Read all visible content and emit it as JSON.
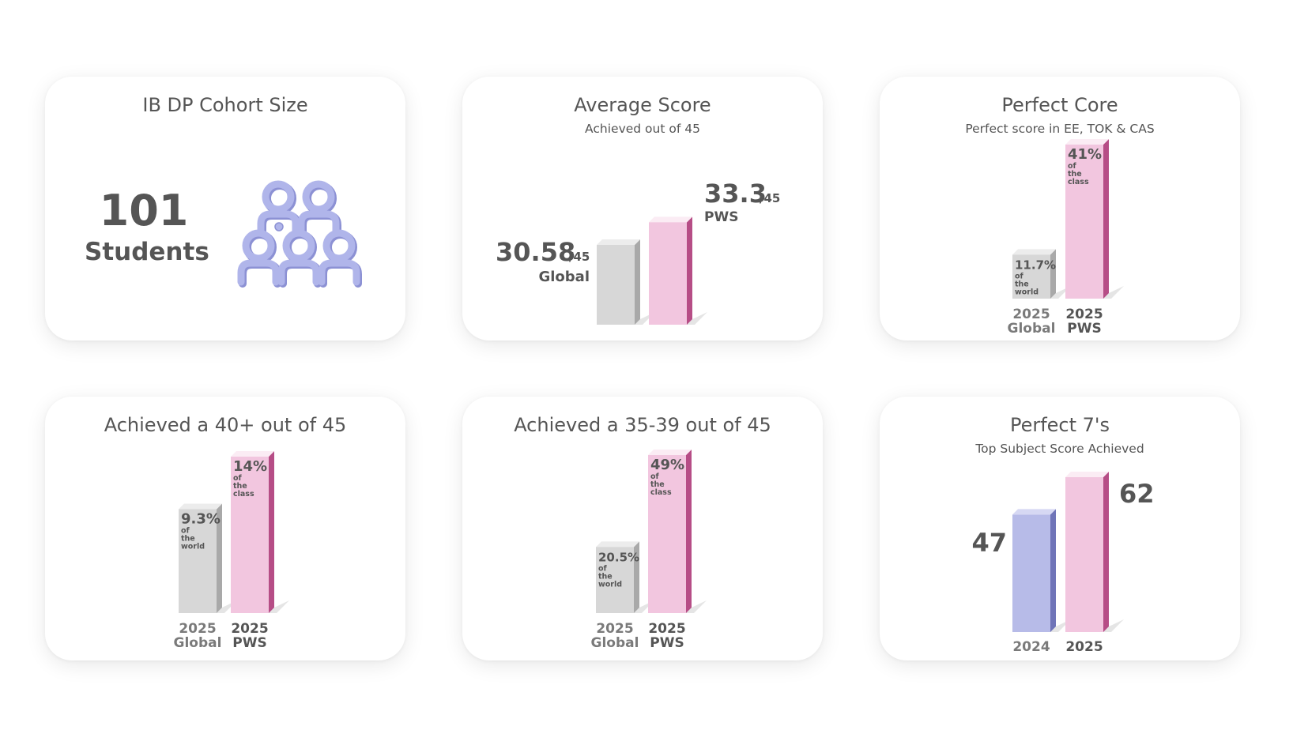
{
  "colors": {
    "global": "#d7d7d7",
    "global_side": "#a9a9a9",
    "pws": "#f2c6df",
    "pws_side": "#b64d86",
    "pws_top": "#fbecf4",
    "prior_year": "#b7bbe8",
    "prior_year_side": "#6f74b8",
    "icon": "#b0b5ea",
    "icon_shade": "#8c91d4",
    "text": "#555555",
    "muted": "#7a7a7a"
  },
  "cohort": {
    "title": "IB DP Cohort Size",
    "number": "101",
    "label": "Students",
    "icon": "people-group-icon"
  },
  "chart_data": [
    {
      "id": "avg",
      "type": "bar",
      "title": "Average Score",
      "subtitle": "Achieved out of 45",
      "categories": [
        "Global",
        "PWS"
      ],
      "values": [
        30.58,
        33.3
      ],
      "ylim": [
        0,
        45
      ],
      "data_labels": [
        {
          "value": "30.58",
          "suffix": "/45",
          "name": "Global"
        },
        {
          "value": "33.3",
          "suffix": "/45",
          "name": "PWS"
        }
      ]
    },
    {
      "id": "core",
      "type": "bar",
      "title": "Perfect Core",
      "subtitle": "Perfect score in EE, TOK  & CAS",
      "categories": [
        "2025 Global",
        "2025 PWS"
      ],
      "values": [
        11.7,
        41
      ],
      "ylim": [
        0,
        41
      ],
      "axis_labels": [
        [
          "2025",
          "Global"
        ],
        [
          "2025",
          "PWS"
        ]
      ],
      "data_labels": [
        {
          "value": "11.7%",
          "lines": [
            "of",
            "the",
            "world"
          ]
        },
        {
          "value": "41%",
          "lines": [
            "of",
            "the",
            "class"
          ]
        }
      ]
    },
    {
      "id": "forty",
      "type": "bar",
      "title": "Achieved a 40+ out of 45",
      "subtitle": "",
      "categories": [
        "2025 Global",
        "2025 PWS"
      ],
      "values": [
        9.3,
        14
      ],
      "ylim": [
        0,
        14
      ],
      "axis_labels": [
        [
          "2025",
          "Global"
        ],
        [
          "2025",
          "PWS"
        ]
      ],
      "data_labels": [
        {
          "value": "9.3%",
          "lines": [
            "of",
            "the",
            "world"
          ]
        },
        {
          "value": "14%",
          "lines": [
            "of",
            "the",
            "class"
          ]
        }
      ]
    },
    {
      "id": "thirtyfive",
      "type": "bar",
      "title": "Achieved a 35-39 out of 45",
      "subtitle": "",
      "categories": [
        "2025 Global",
        "2025 PWS"
      ],
      "values": [
        20.5,
        49
      ],
      "ylim": [
        0,
        49
      ],
      "axis_labels": [
        [
          "2025",
          "Global"
        ],
        [
          "2025",
          "PWS"
        ]
      ],
      "data_labels": [
        {
          "value": "20.5%",
          "lines": [
            "of",
            "the",
            "world"
          ]
        },
        {
          "value": "49%",
          "lines": [
            "of",
            "the",
            "class"
          ]
        }
      ]
    },
    {
      "id": "sevens",
      "type": "bar",
      "title": "Perfect 7's",
      "subtitle": "Top Subject Score Achieved",
      "categories": [
        "2024",
        "2025"
      ],
      "values": [
        47,
        62
      ],
      "ylim": [
        0,
        62
      ],
      "axis_labels": [
        [
          "2024"
        ],
        [
          "2025"
        ]
      ],
      "data_labels": [
        {
          "value": "47"
        },
        {
          "value": "62"
        }
      ]
    }
  ]
}
